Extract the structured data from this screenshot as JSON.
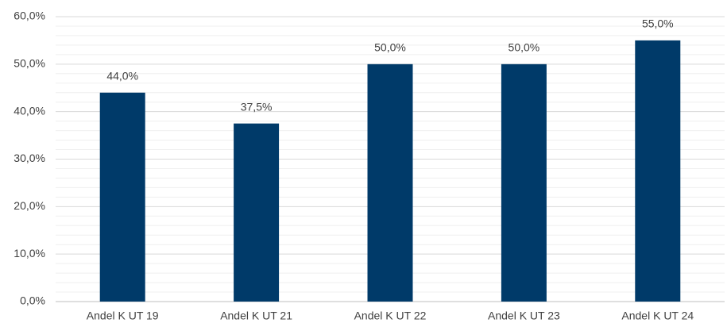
{
  "chart_data": {
    "type": "bar",
    "categories": [
      "Andel K UT 19",
      "Andel K UT 21",
      "Andel K UT 22",
      "Andel K UT 23",
      "Andel K UT 24"
    ],
    "values": [
      44,
      37.5,
      50,
      50,
      55
    ],
    "value_labels": [
      "44,0%",
      "37,5%",
      "50,0%",
      "50,0%",
      "55,0%"
    ],
    "color": "#003a69",
    "ylim": [
      0,
      60
    ],
    "yticks": [
      {
        "value": 0,
        "label": "0,0%"
      },
      {
        "value": 10,
        "label": "10,0%"
      },
      {
        "value": 20,
        "label": "20,0%"
      },
      {
        "value": 30,
        "label": "30,0%"
      },
      {
        "value": 40,
        "label": "40,0%"
      },
      {
        "value": 50,
        "label": "50,0%"
      },
      {
        "value": 60,
        "label": "60,0%"
      }
    ],
    "minor_yticks": [
      2,
      4,
      6,
      8,
      12,
      14,
      16,
      18,
      22,
      24,
      26,
      28,
      32,
      34,
      36,
      38,
      42,
      44,
      46,
      48,
      52,
      54,
      56,
      58
    ],
    "grid": true
  }
}
